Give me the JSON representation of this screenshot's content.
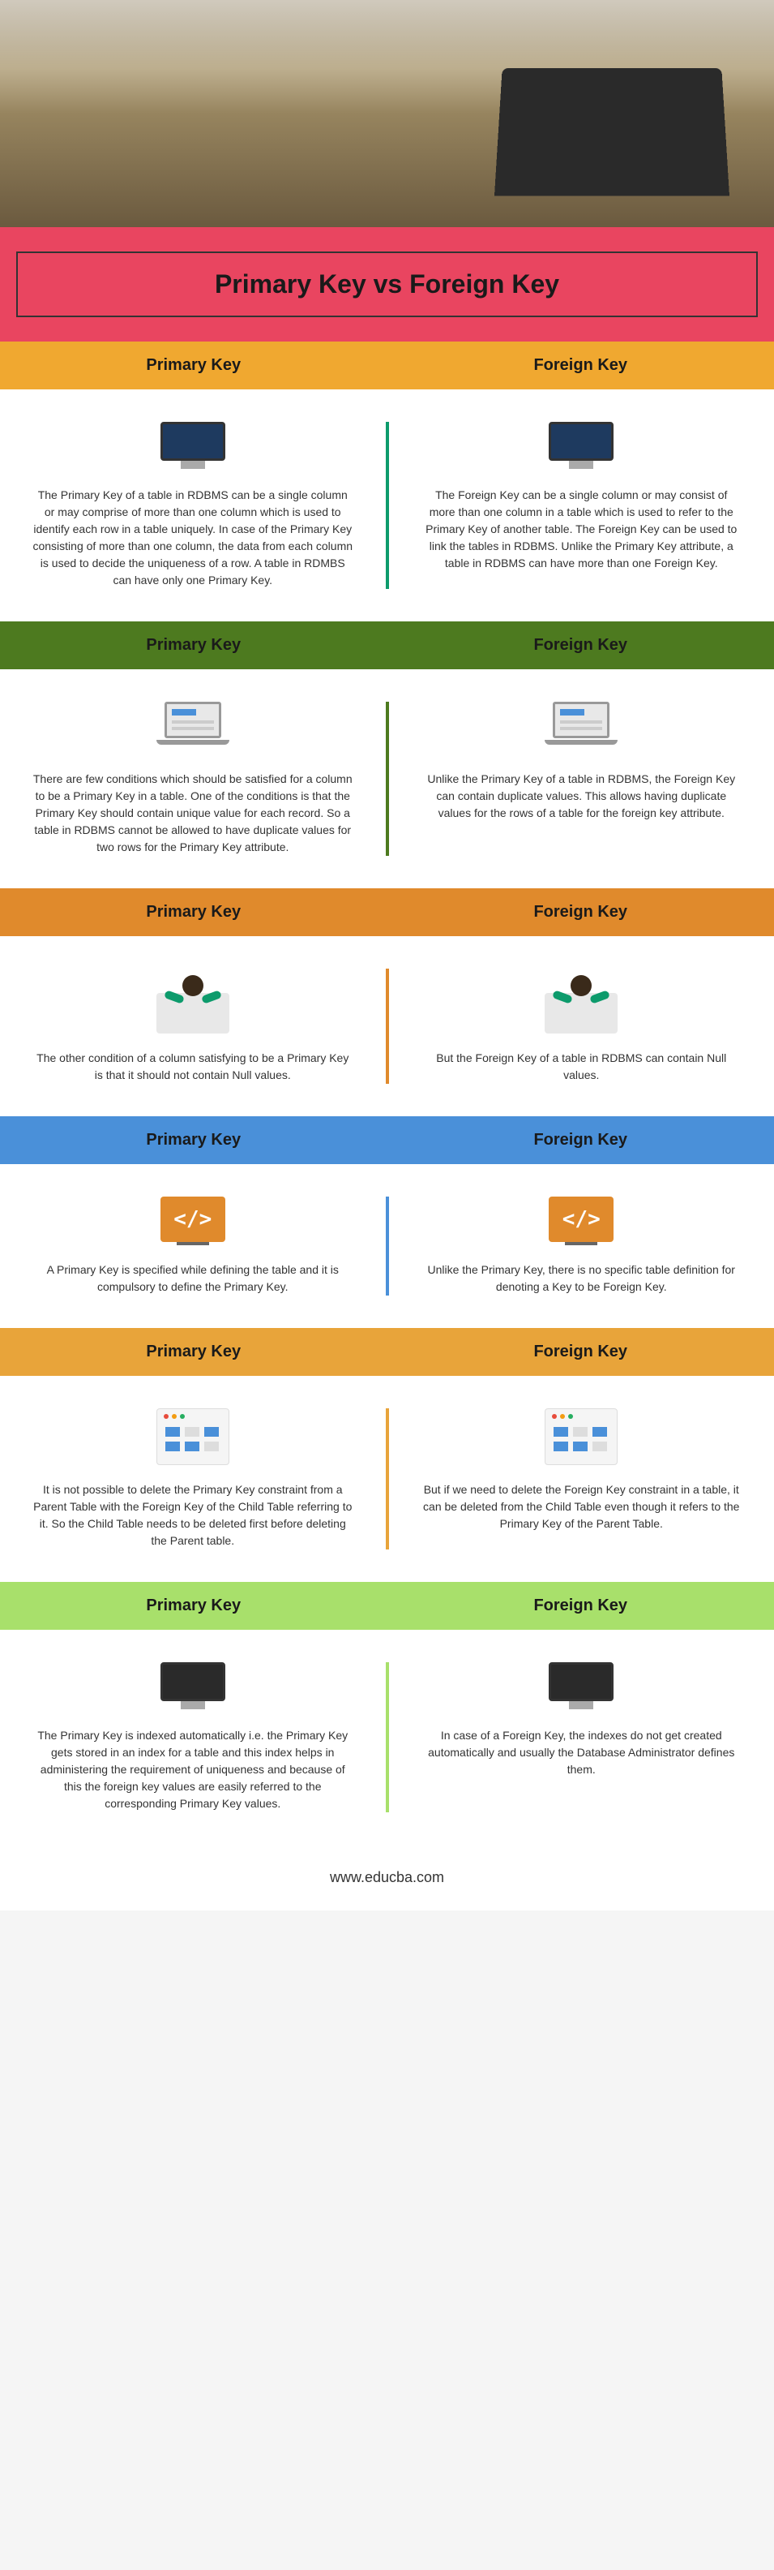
{
  "title": "Primary Key vs Foreign Key",
  "footer": "www.educba.com",
  "columns": {
    "left": "Primary Key",
    "right": "Foreign Key"
  },
  "sections": [
    {
      "header_color": "#f0a830",
      "divider_color": "#0d9b6c",
      "icon": "monitor-blue",
      "left": "The Primary Key of a table in RDBMS can be a single column or may comprise of more than one column which is used to identify each row in a table uniquely. In case of the Primary Key consisting of more than one column, the data from each column is used to decide the uniqueness of a row. A table in RDMBS can have only one Primary Key.",
      "right": "The Foreign Key can be a single column or may consist of more than one column in a table which is used to refer to the Primary Key of another table. The Foreign Key can be used to link the tables in RDBMS. Unlike the Primary Key attribute, a table in RDBMS can have more than one Foreign Key."
    },
    {
      "header_color": "#4d7a1f",
      "divider_color": "#4d7a1f",
      "icon": "laptop",
      "left": "There are few conditions which should be satisfied for a column to be a Primary Key in a table. One of the conditions is that the Primary Key should contain unique value for each record. So a table in RDBMS cannot be allowed to have duplicate values for two rows for the Primary Key attribute.",
      "right": "Unlike the Primary Key of a table in RDBMS, the Foreign Key can contain duplicate values. This allows having duplicate values for the rows of a table for the foreign key attribute."
    },
    {
      "header_color": "#e08a2c",
      "divider_color": "#e08a2c",
      "icon": "person",
      "left": "The other condition of a column satisfying to be a Primary Key is that it should not contain Null values.",
      "right": "But the Foreign Key of a table in RDBMS can contain Null values."
    },
    {
      "header_color": "#4a90d9",
      "divider_color": "#4a90d9",
      "icon": "code",
      "icon_bg_left": "#e08a2c",
      "icon_bg_right": "#e08a2c",
      "left": "A Primary Key is specified while defining the table and it is compulsory to define the Primary Key.",
      "right": "Unlike the Primary Key, there is no specific table definition for denoting a Key to be Foreign Key."
    },
    {
      "header_color": "#e8a43a",
      "divider_color": "#e8a43a",
      "icon": "browser",
      "left": "It is not possible to delete the Primary Key constraint from a Parent Table with the Foreign Key of the Child Table referring to it. So the Child Table needs to be deleted first before deleting the Parent table.",
      "right": "But if we need to delete the Foreign Key constraint in a table, it can be deleted from the Child Table even though it refers to the Primary Key of the Parent Table."
    },
    {
      "header_color": "#a8e06b",
      "divider_color": "#a8e06b",
      "icon": "monitor-dark",
      "left": "The Primary Key is indexed automatically i.e. the Primary Key gets stored in an index for a table and this index helps in administering the requirement of uniqueness and because of this the foreign key values are easily referred to the corresponding Primary Key values.",
      "right": "In case of a Foreign Key, the indexes do not get created automatically and usually the Database Administrator defines them."
    }
  ]
}
